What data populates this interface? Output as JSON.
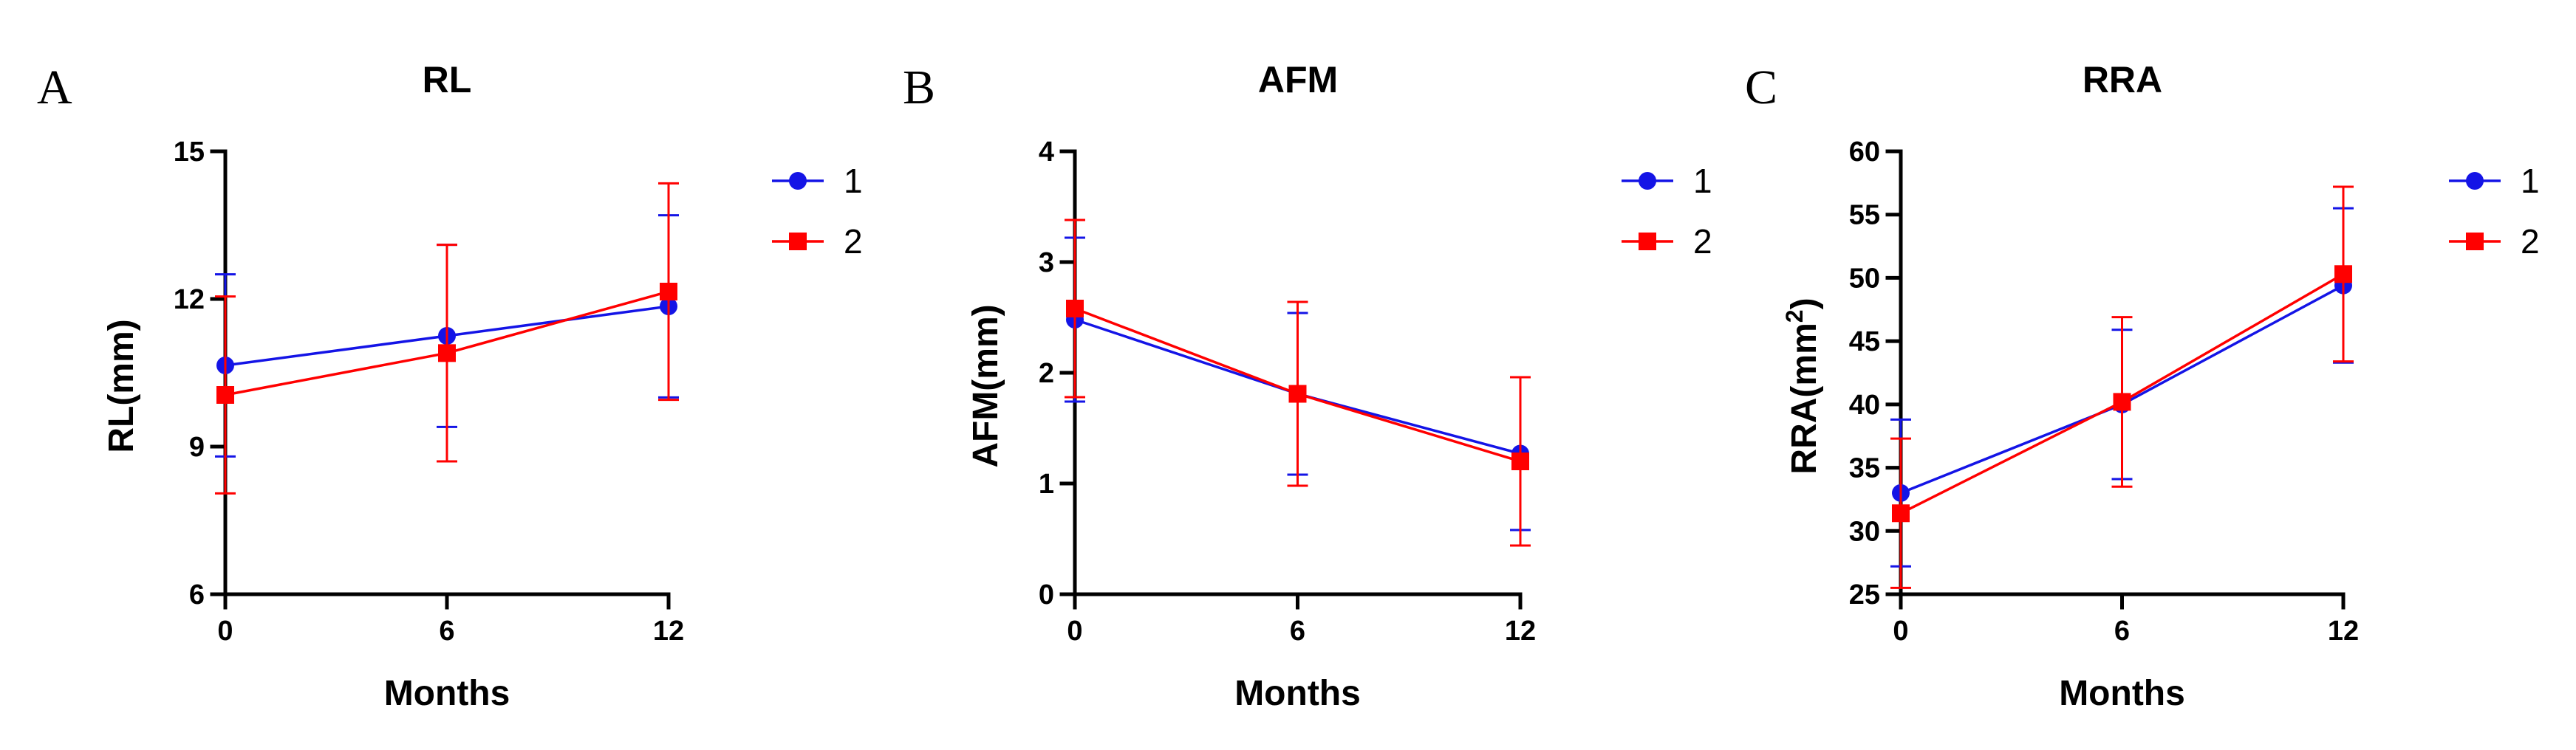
{
  "chart_data": [
    {
      "panel_letter": "A",
      "type": "line",
      "title": "RL",
      "xlabel": "Months",
      "ylabel": "RL(mm)",
      "x": [
        0,
        6,
        12
      ],
      "xticks": [
        "0",
        "6",
        "12"
      ],
      "ylim": [
        6,
        15
      ],
      "yticks": [
        "6",
        "9",
        "12",
        "15"
      ],
      "series": [
        {
          "name": "1",
          "color": "#1414e6",
          "marker": "circle",
          "values": [
            10.65,
            11.25,
            11.85
          ],
          "errors": [
            1.85,
            1.85,
            1.85
          ]
        },
        {
          "name": "2",
          "color": "#ff0000",
          "marker": "square",
          "values": [
            10.05,
            10.9,
            12.15
          ],
          "errors": [
            2.0,
            2.2,
            2.2
          ]
        }
      ]
    },
    {
      "panel_letter": "B",
      "type": "line",
      "title": "AFM",
      "xlabel": "Months",
      "ylabel": "AFM(mm)",
      "x": [
        0,
        6,
        12
      ],
      "xticks": [
        "0",
        "6",
        "12"
      ],
      "ylim": [
        0,
        4
      ],
      "yticks": [
        "0",
        "1",
        "2",
        "3",
        "4"
      ],
      "series": [
        {
          "name": "1",
          "color": "#1414e6",
          "marker": "circle",
          "values": [
            2.48,
            1.81,
            1.27
          ],
          "errors": [
            0.74,
            0.73,
            0.69
          ]
        },
        {
          "name": "2",
          "color": "#ff0000",
          "marker": "square",
          "values": [
            2.58,
            1.81,
            1.2
          ],
          "errors": [
            0.8,
            0.83,
            0.76
          ]
        }
      ]
    },
    {
      "panel_letter": "C",
      "type": "line",
      "title": "RRA",
      "xlabel": "Months",
      "ylabel": "RRA(mm",
      "ylabel_sup": "2",
      "ylabel_end": ")",
      "x": [
        0,
        6,
        12
      ],
      "xticks": [
        "0",
        "6",
        "12"
      ],
      "ylim": [
        25,
        60
      ],
      "yticks": [
        "25",
        "30",
        "35",
        "40",
        "45",
        "50",
        "55",
        "60"
      ],
      "series": [
        {
          "name": "1",
          "color": "#1414e6",
          "marker": "circle",
          "values": [
            33.0,
            40.0,
            49.4
          ],
          "errors": [
            5.8,
            5.9,
            6.1
          ]
        },
        {
          "name": "2",
          "color": "#ff0000",
          "marker": "square",
          "values": [
            31.4,
            40.2,
            50.3
          ],
          "errors": [
            5.9,
            6.7,
            6.9
          ]
        }
      ]
    }
  ]
}
